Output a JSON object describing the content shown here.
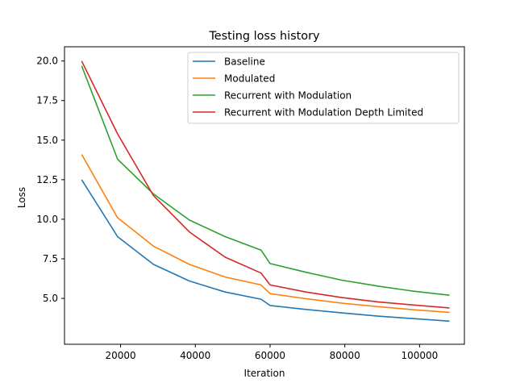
{
  "chart_data": {
    "type": "line",
    "title": "Testing loss history",
    "xlabel": "Iteration",
    "ylabel": "Loss",
    "xlim": [
      5000,
      112000
    ],
    "ylim": [
      2.1,
      20.9
    ],
    "xticks": [
      20000,
      40000,
      60000,
      80000,
      100000
    ],
    "xtick_labels": [
      "20000",
      "40000",
      "60000",
      "80000",
      "100000"
    ],
    "yticks": [
      5.0,
      7.5,
      10.0,
      12.5,
      15.0,
      17.5,
      20.0
    ],
    "ytick_labels": [
      "5.0",
      "7.5",
      "10.0",
      "12.5",
      "15.0",
      "17.5",
      "20.0"
    ],
    "grid": false,
    "legend_position": "top-right",
    "series": [
      {
        "name": "Baseline",
        "color": "#1f77b4",
        "x": [
          9600,
          19200,
          28800,
          38400,
          48000,
          57600,
          60000,
          69600,
          79200,
          88800,
          98400,
          108000
        ],
        "y": [
          12.5,
          8.9,
          7.15,
          6.1,
          5.4,
          4.95,
          4.55,
          4.3,
          4.08,
          3.88,
          3.72,
          3.56
        ]
      },
      {
        "name": "Modulated",
        "color": "#ff7f0e",
        "x": [
          9600,
          19200,
          28800,
          38400,
          48000,
          57600,
          60000,
          69600,
          79200,
          88800,
          98400,
          108000
        ],
        "y": [
          14.1,
          10.1,
          8.3,
          7.15,
          6.35,
          5.85,
          5.3,
          4.98,
          4.7,
          4.48,
          4.28,
          4.12
        ]
      },
      {
        "name": "Recurrent with Modulation",
        "color": "#2ca02c",
        "x": [
          9600,
          19200,
          28800,
          38400,
          48000,
          57600,
          60000,
          69600,
          79200,
          88800,
          98400,
          108000
        ],
        "y": [
          19.7,
          13.8,
          11.6,
          9.95,
          8.9,
          8.05,
          7.2,
          6.65,
          6.15,
          5.78,
          5.45,
          5.2
        ]
      },
      {
        "name": "Recurrent with Modulation Depth Limited",
        "color": "#d62728",
        "x": [
          9600,
          19200,
          28800,
          38400,
          48000,
          57600,
          60000,
          69600,
          79200,
          88800,
          98400,
          108000
        ],
        "y": [
          20.0,
          15.4,
          11.5,
          9.2,
          7.6,
          6.6,
          5.85,
          5.4,
          5.05,
          4.78,
          4.58,
          4.4
        ]
      }
    ]
  }
}
